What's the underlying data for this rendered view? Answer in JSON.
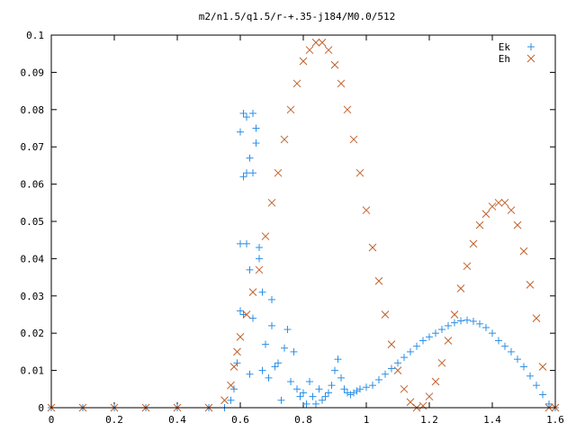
{
  "chart_data": {
    "type": "scatter",
    "title": "m2/n1.5/q1.5/r-+.35-j184/M0.0/512",
    "xlabel": "",
    "ylabel": "",
    "xlim": [
      0,
      1.6
    ],
    "ylim": [
      0,
      0.1
    ],
    "xticks": [
      "0",
      "0.2",
      "0.4",
      "0.6",
      "0.8",
      "1",
      "1.2",
      "1.4",
      "1.6"
    ],
    "yticks": [
      "0",
      "0.01",
      "0.02",
      "0.03",
      "0.04",
      "0.05",
      "0.06",
      "0.07",
      "0.08",
      "0.09",
      "0.1"
    ],
    "grid": false,
    "legend": "top-right",
    "series": [
      {
        "name": "Ek",
        "marker": "+",
        "color": "#2b8fe6",
        "x": [
          0.0,
          0.1,
          0.2,
          0.3,
          0.4,
          0.5,
          0.55,
          0.57,
          0.58,
          0.59,
          0.6,
          0.6,
          0.6,
          0.61,
          0.61,
          0.61,
          0.62,
          0.62,
          0.62,
          0.63,
          0.63,
          0.63,
          0.64,
          0.64,
          0.64,
          0.65,
          0.65,
          0.66,
          0.66,
          0.67,
          0.67,
          0.68,
          0.69,
          0.7,
          0.7,
          0.71,
          0.72,
          0.73,
          0.74,
          0.75,
          0.76,
          0.77,
          0.78,
          0.79,
          0.8,
          0.81,
          0.82,
          0.83,
          0.84,
          0.85,
          0.86,
          0.87,
          0.88,
          0.89,
          0.9,
          0.91,
          0.92,
          0.93,
          0.94,
          0.95,
          0.96,
          0.97,
          0.98,
          1.0,
          1.02,
          1.04,
          1.06,
          1.08,
          1.1,
          1.12,
          1.14,
          1.16,
          1.18,
          1.2,
          1.22,
          1.24,
          1.26,
          1.28,
          1.3,
          1.32,
          1.34,
          1.36,
          1.38,
          1.4,
          1.42,
          1.44,
          1.46,
          1.48,
          1.5,
          1.52,
          1.54,
          1.56,
          1.58,
          1.6
        ],
        "y": [
          0,
          0,
          0,
          0,
          0,
          0,
          0,
          0.002,
          0.005,
          0.012,
          0.026,
          0.044,
          0.074,
          0.079,
          0.062,
          0.025,
          0.078,
          0.044,
          0.063,
          0.067,
          0.037,
          0.009,
          0.079,
          0.063,
          0.024,
          0.075,
          0.071,
          0.043,
          0.04,
          0.031,
          0.01,
          0.017,
          0.008,
          0.022,
          0.029,
          0.011,
          0.012,
          0.002,
          0.016,
          0.021,
          0.007,
          0.015,
          0.005,
          0.003,
          0.004,
          0.001,
          0.007,
          0.003,
          0.001,
          0.005,
          0.002,
          0.003,
          0.004,
          0.006,
          0.01,
          0.013,
          0.008,
          0.005,
          0.004,
          0.0035,
          0.004,
          0.0045,
          0.005,
          0.0055,
          0.006,
          0.0075,
          0.009,
          0.0105,
          0.012,
          0.0135,
          0.015,
          0.0165,
          0.018,
          0.019,
          0.02,
          0.021,
          0.022,
          0.0228,
          0.0233,
          0.0235,
          0.0232,
          0.0225,
          0.0215,
          0.02,
          0.018,
          0.0165,
          0.015,
          0.013,
          0.011,
          0.0085,
          0.006,
          0.0035,
          0.001,
          0.0
        ]
      },
      {
        "name": "Eh",
        "marker": "x",
        "color": "#c0602c",
        "x": [
          0.0,
          0.1,
          0.2,
          0.3,
          0.4,
          0.5,
          0.55,
          0.57,
          0.58,
          0.59,
          0.6,
          0.62,
          0.64,
          0.66,
          0.68,
          0.7,
          0.72,
          0.74,
          0.76,
          0.78,
          0.8,
          0.82,
          0.84,
          0.86,
          0.88,
          0.9,
          0.92,
          0.94,
          0.96,
          0.98,
          1.0,
          1.02,
          1.04,
          1.06,
          1.08,
          1.1,
          1.12,
          1.14,
          1.16,
          1.18,
          1.2,
          1.22,
          1.24,
          1.26,
          1.28,
          1.3,
          1.32,
          1.34,
          1.36,
          1.38,
          1.4,
          1.42,
          1.44,
          1.46,
          1.48,
          1.5,
          1.52,
          1.54,
          1.56,
          1.58,
          1.6
        ],
        "y": [
          0,
          0,
          0,
          0,
          0,
          0,
          0.002,
          0.006,
          0.011,
          0.015,
          0.019,
          0.025,
          0.031,
          0.037,
          0.046,
          0.055,
          0.063,
          0.072,
          0.08,
          0.087,
          0.093,
          0.096,
          0.098,
          0.098,
          0.096,
          0.092,
          0.087,
          0.08,
          0.072,
          0.063,
          0.053,
          0.043,
          0.034,
          0.025,
          0.017,
          0.01,
          0.005,
          0.0015,
          0.0,
          0.0005,
          0.003,
          0.007,
          0.012,
          0.018,
          0.025,
          0.032,
          0.038,
          0.044,
          0.049,
          0.052,
          0.054,
          0.055,
          0.055,
          0.053,
          0.049,
          0.042,
          0.033,
          0.024,
          0.011,
          0.0,
          0.0
        ]
      }
    ]
  }
}
